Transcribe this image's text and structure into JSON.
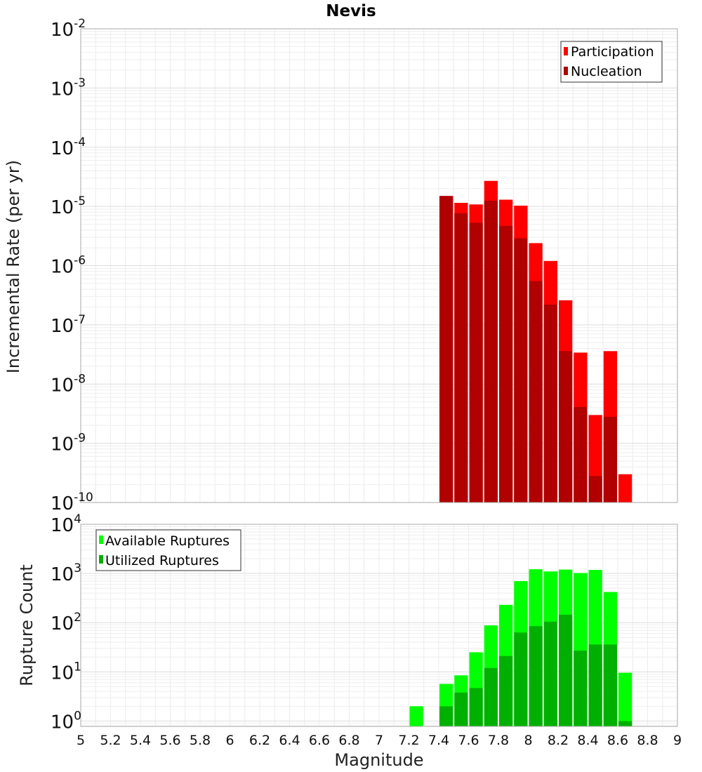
{
  "chart_data": [
    {
      "type": "bar",
      "title": "Nevis",
      "xlabel": "Magnitude",
      "ylabel": "Incremental Rate (per yr)",
      "yscale": "log",
      "xlim": [
        5,
        9
      ],
      "ylim": [
        1e-10,
        0.01
      ],
      "grid": true,
      "legend_position": "top-right",
      "y_tick_labels": [
        {
          "base": "10",
          "exp": "-10"
        },
        {
          "base": "10",
          "exp": "-9"
        },
        {
          "base": "10",
          "exp": "-8"
        },
        {
          "base": "10",
          "exp": "-7"
        },
        {
          "base": "10",
          "exp": "-6"
        },
        {
          "base": "10",
          "exp": "-5"
        },
        {
          "base": "10",
          "exp": "-4"
        },
        {
          "base": "10",
          "exp": "-3"
        },
        {
          "base": "10",
          "exp": "-2"
        }
      ],
      "bin_width": 0.1,
      "x": [
        7.45,
        7.55,
        7.65,
        7.75,
        7.85,
        7.95,
        8.05,
        8.15,
        8.25,
        8.35,
        8.45,
        8.55,
        8.65
      ],
      "series": [
        {
          "name": "Participation",
          "color": "#ff0000",
          "values": [
            1.5e-05,
            1.15e-05,
            1.08e-05,
            2.7e-05,
            1.3e-05,
            1.03e-05,
            2.4e-06,
            1.2e-06,
            2.6e-07,
            3.4e-08,
            3e-09,
            3.6e-08,
            3e-10
          ]
        },
        {
          "name": "Nucleation",
          "color": "#b00000",
          "values": [
            1.5e-05,
            7.7e-06,
            5.3e-06,
            1.25e-05,
            4.7e-06,
            2.9e-06,
            5.5e-07,
            2.2e-07,
            3.6e-08,
            4.1e-09,
            2.8e-10,
            2.8e-09,
            null
          ]
        }
      ]
    },
    {
      "type": "bar",
      "xlabel": "Magnitude",
      "ylabel": "Rupture Count",
      "yscale": "log",
      "xlim": [
        5,
        9
      ],
      "ylim": [
        0.78,
        10000.0
      ],
      "grid": true,
      "legend_position": "top-left",
      "y_tick_labels": [
        {
          "base": "10",
          "exp": "0"
        },
        {
          "base": "10",
          "exp": "1"
        },
        {
          "base": "10",
          "exp": "2"
        },
        {
          "base": "10",
          "exp": "3"
        },
        {
          "base": "10",
          "exp": "4"
        }
      ],
      "x_tick_labels": [
        "5",
        "5.2",
        "5.4",
        "5.6",
        "5.8",
        "6",
        "6.2",
        "6.4",
        "6.6",
        "6.8",
        "7",
        "7.2",
        "7.4",
        "7.6",
        "7.8",
        "8",
        "8.2",
        "8.4",
        "8.6",
        "8.8",
        "9"
      ],
      "bin_width": 0.1,
      "x": [
        7.25,
        7.45,
        7.55,
        7.65,
        7.75,
        7.85,
        7.95,
        8.05,
        8.15,
        8.25,
        8.35,
        8.45,
        8.55,
        8.65
      ],
      "series": [
        {
          "name": "Available Ruptures",
          "color": "#00ff00",
          "values": [
            2,
            5.7,
            8.5,
            25,
            88,
            230,
            700,
            1220,
            1100,
            1200,
            1020,
            1180,
            420,
            9.6
          ]
        },
        {
          "name": "Utilized Ruptures",
          "color": "#00b000",
          "values": [
            null,
            2,
            3.8,
            4.7,
            12,
            21,
            63,
            85,
            105,
            145,
            27,
            36,
            36,
            1
          ]
        }
      ]
    }
  ]
}
